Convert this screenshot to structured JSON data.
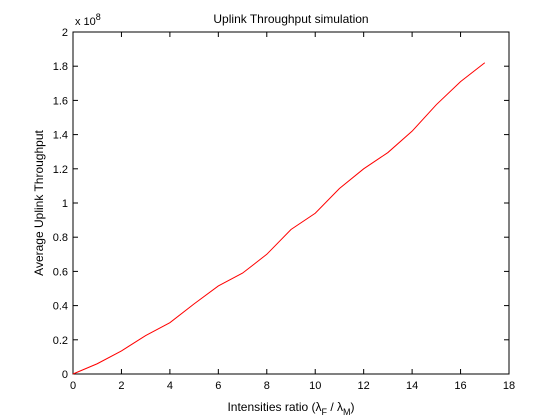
{
  "chart_data": {
    "type": "line",
    "title": "Uplink Throughput simulation",
    "xlabel": {
      "text": "Intensities ratio (",
      "sym1": "λ",
      "sub1": "F",
      "mid": " / ",
      "sym2": "λ",
      "sub2": "M",
      "end": ")"
    },
    "ylabel": "Average Uplink Throughput",
    "y_exponent": {
      "base": "x 10",
      "power": "8"
    },
    "xlim": [
      0,
      18
    ],
    "ylim": [
      0,
      2
    ],
    "xticks": [
      0,
      2,
      4,
      6,
      8,
      10,
      12,
      14,
      16,
      18
    ],
    "yticks": [
      0,
      0.2,
      0.4,
      0.6,
      0.8,
      1,
      1.2,
      1.4,
      1.6,
      1.8,
      2
    ],
    "grid": false,
    "series": [
      {
        "color": "#ff0000",
        "x": [
          0,
          1,
          2,
          3,
          4,
          5,
          6,
          7,
          8,
          9,
          10,
          11,
          12,
          13,
          14,
          15,
          16,
          17
        ],
        "y": [
          0.0,
          0.06,
          0.135,
          0.225,
          0.3,
          0.41,
          0.515,
          0.59,
          0.7,
          0.845,
          0.94,
          1.085,
          1.2,
          1.295,
          1.42,
          1.575,
          1.71,
          1.82
        ]
      }
    ]
  }
}
